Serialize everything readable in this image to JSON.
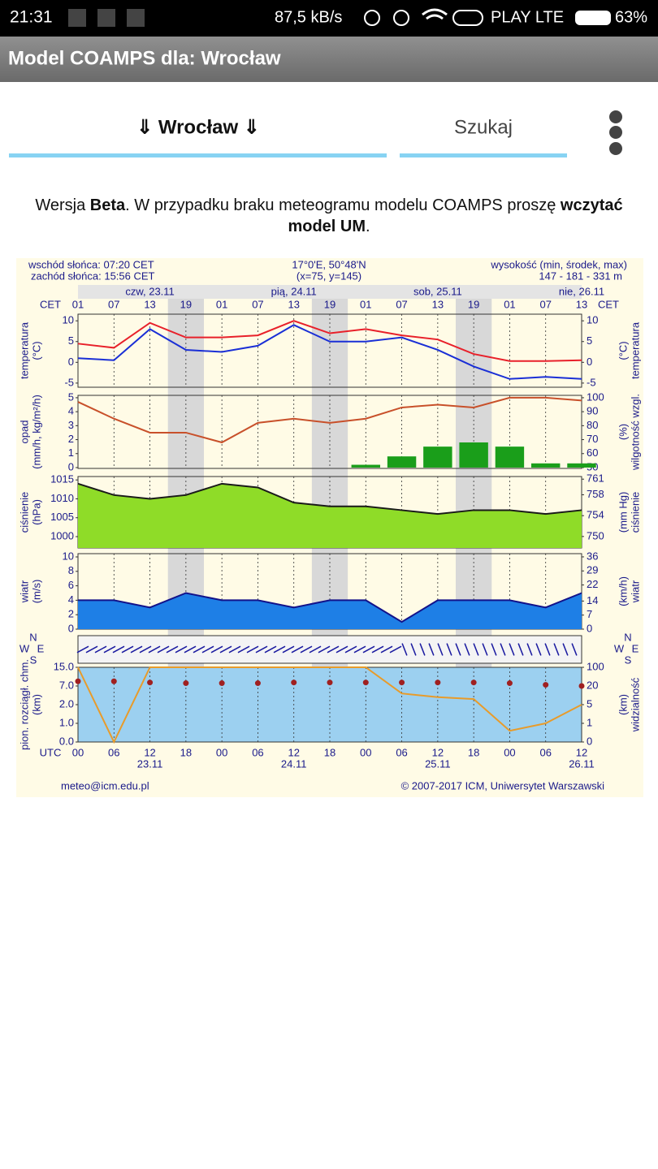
{
  "status_bar": {
    "time": "21:31",
    "speed": "87,5 kB/s",
    "carrier": "PLAY LTE",
    "battery": "63%"
  },
  "app_bar": {
    "title": "Model COAMPS dla: Wrocław"
  },
  "tabs": {
    "location": "⇓ Wrocław ⇓",
    "search": "Szukaj"
  },
  "notice": {
    "parts": [
      "Wersja ",
      "Beta",
      ". W przypadku braku meteogramu modelu COAMPS proszę ",
      "wczytać",
      "model UM",
      "."
    ]
  },
  "chart_data": {
    "type": "meteogram",
    "header": {
      "sunrise": "wschód słońca: 07:20 CET",
      "sunset": "zachód słońca: 15:56 CET",
      "coords": "17°0'E, 50°48'N",
      "grid_point": "(x=75, y=145)",
      "height_label": "wysokość (min, środek, max)",
      "height_values": "147 - 181 - 331 m"
    },
    "footer": {
      "email": "meteo@icm.edu.pl",
      "copyright": "© 2007-2017 ICM, Uniwersytet Warszawski"
    },
    "time": {
      "cet_label": "CET",
      "cet_hours": [
        "01",
        "07",
        "13",
        "19",
        "01",
        "07",
        "13",
        "19",
        "01",
        "07",
        "13",
        "19",
        "01",
        "07",
        "13"
      ],
      "utc_label": "UTC",
      "utc_hours": [
        "00",
        "06",
        "12",
        "18",
        "00",
        "06",
        "12",
        "18",
        "00",
        "06",
        "12",
        "18",
        "00",
        "06",
        "12"
      ],
      "days": [
        "czw, 23.11",
        "pią, 24.11",
        "sob, 25.11",
        "nie, 26.11"
      ],
      "dates": [
        "23.11",
        "24.11",
        "25.11",
        "26.11"
      ]
    },
    "compass": [
      "W",
      "S",
      "N",
      "E"
    ],
    "panels": [
      {
        "label": [
          "temperatura",
          "(°C)"
        ],
        "right_label": [
          "(°C)",
          "temperatura"
        ],
        "ylim": [
          -6,
          11.6
        ],
        "yticks": [
          -5,
          0,
          5,
          10
        ],
        "y2lim": [
          -6,
          11.6
        ],
        "y2ticks": [
          -5,
          0,
          5,
          10
        ],
        "series": [
          {
            "kind": "line",
            "color": "#e8202a",
            "values": [
              4.5,
              3.5,
              9.5,
              6,
              6,
              6.5,
              10,
              7,
              8,
              6.5,
              5.5,
              2,
              0.3,
              0.3,
              0.5
            ]
          },
          {
            "kind": "line",
            "color": "#1a2fd6",
            "values": [
              1,
              0.5,
              8,
              3,
              2.5,
              4,
              9,
              5,
              5,
              6,
              3,
              -1,
              -4,
              -3.5,
              -4
            ]
          }
        ]
      },
      {
        "label": [
          "opad",
          "(mm/h, kg/m²/h)"
        ],
        "right_label": [
          "(%)",
          "wilgotność wzgl."
        ],
        "ylim": [
          -0.06,
          5.17
        ],
        "yticks": [
          0,
          1,
          2,
          3,
          4,
          5
        ],
        "y2lim": [
          49.4,
          101.7
        ],
        "y2ticks": [
          50,
          60,
          70,
          80,
          90,
          100
        ],
        "series": [
          {
            "kind": "bar",
            "color": "#1a9e1a",
            "values": [
              0,
              0,
              0,
              0,
              0,
              0,
              0,
              0,
              0.2,
              0.8,
              1.5,
              1.8,
              1.5,
              0.3,
              0.3
            ]
          },
          {
            "kind": "line",
            "axis": "y2",
            "color": "#c8502a",
            "values": [
              97,
              85,
              75,
              75,
              68,
              82,
              85,
              82,
              85,
              93,
              95,
              93,
              100,
              100,
              98
            ]
          }
        ]
      },
      {
        "label": [
          "ciśnienie",
          "(hPa)"
        ],
        "right_label": [
          "(mm Hg)",
          "ciśnienie"
        ],
        "ylim": [
          997,
          1015.9
        ],
        "yticks": [
          1000,
          1005,
          1010,
          1015
        ],
        "y2lim": [
          747.8,
          761.5
        ],
        "y2ticks": [
          750,
          754,
          758,
          761
        ],
        "series": [
          {
            "kind": "area",
            "color": "#1a1a1a",
            "fill": "#8fdc28",
            "values": [
              1014,
              1011,
              1010,
              1011,
              1014,
              1013,
              1009,
              1008,
              1008,
              1007,
              1006,
              1007,
              1007,
              1006,
              1007
            ]
          }
        ]
      },
      {
        "label": [
          "wiatr",
          "(m/s)"
        ],
        "right_label": [
          "(km/h)",
          "wiatr"
        ],
        "ylim": [
          0,
          10.45
        ],
        "yticks": [
          0,
          2,
          4,
          6,
          8,
          10
        ],
        "y2lim": [
          0,
          37.6
        ],
        "y2ticks": [
          0,
          7,
          14,
          22,
          29,
          36
        ],
        "series": [
          {
            "kind": "area",
            "color": "#12128a",
            "fill": "#1e7fe6",
            "values": [
              4,
              4,
              3,
              5,
              4,
              4,
              3,
              4,
              4,
              1,
              4,
              4,
              4,
              3,
              5
            ]
          }
        ]
      },
      {
        "label": [
          "pion. rozciągł. chm.",
          "(km)"
        ],
        "right_label": [
          "(km)",
          "widzialność"
        ],
        "yscale": "piecewise",
        "ylim": [
          0,
          15
        ],
        "yticks": [
          {
            "value": 15,
            "label": "15.0"
          },
          {
            "value": 7,
            "label": "7.0"
          },
          {
            "value": 2,
            "label": "2.0"
          },
          {
            "value": 1,
            "label": "1.0"
          },
          {
            "value": 0,
            "label": "0.0"
          }
        ],
        "y2lim": [
          0,
          100
        ],
        "y2ticks": [
          100,
          20,
          5,
          1,
          0
        ],
        "series": [
          {
            "kind": "line",
            "color": "#e89b2a",
            "values": [
              15,
              0,
              15,
              15,
              15,
              15,
              15,
              15,
              15,
              5,
              4,
              3.5,
              0.6,
              1,
              2
            ]
          },
          {
            "kind": "dots",
            "axis": "y2",
            "color": "#a02020",
            "values": [
              40,
              40,
              35,
              32,
              32,
              32,
              35,
              35,
              35,
              35,
              35,
              35,
              32,
              25,
              20
            ]
          }
        ]
      }
    ]
  }
}
